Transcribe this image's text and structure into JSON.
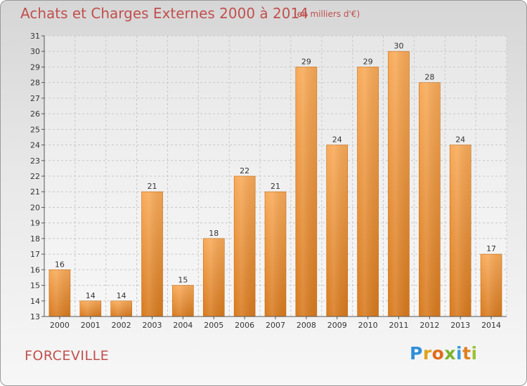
{
  "header": {
    "title": "Achats et Charges Externes 2000 à 2014",
    "unit": "(en milliers d'€)"
  },
  "footer": {
    "location": "FORCEVILLE",
    "brand": {
      "p": "P",
      "r": "r",
      "o": "o",
      "x": "x",
      "i1": "i",
      "t": "t",
      "i2": "i"
    }
  },
  "colors": {
    "bar_top": "#f8aa58",
    "bar_bottom": "#d87a1e",
    "title": "#c0504d"
  },
  "chart_data": {
    "type": "bar",
    "title": "Achats et Charges Externes 2000 à 2014",
    "subtitle": "(en milliers d'€)",
    "categories": [
      "2000",
      "2001",
      "2002",
      "2003",
      "2004",
      "2005",
      "2006",
      "2007",
      "2008",
      "2009",
      "2010",
      "2011",
      "2012",
      "2013",
      "2014"
    ],
    "values": [
      16,
      14,
      14,
      21,
      15,
      18,
      22,
      21,
      29,
      24,
      29,
      30,
      28,
      24,
      17
    ],
    "ylim": [
      13,
      31
    ],
    "yticks": [
      13,
      14,
      15,
      16,
      17,
      18,
      19,
      20,
      21,
      22,
      23,
      24,
      25,
      26,
      27,
      28,
      29,
      30,
      31
    ],
    "grid": true,
    "xlabel": "",
    "ylabel": ""
  }
}
